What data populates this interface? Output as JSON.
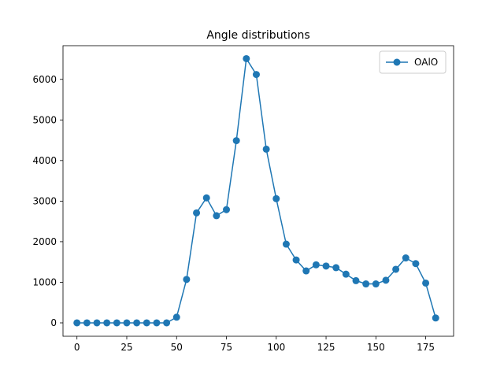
{
  "chart_data": {
    "type": "line",
    "title": "Angle distributions",
    "xlabel": "",
    "ylabel": "",
    "xlim": [
      -7,
      189
    ],
    "ylim": [
      -330,
      6830
    ],
    "xticks": [
      0,
      25,
      50,
      75,
      100,
      125,
      150,
      175
    ],
    "yticks": [
      0,
      1000,
      2000,
      3000,
      4000,
      5000,
      6000
    ],
    "grid": false,
    "legend_position": "top-right",
    "series": [
      {
        "name": "OAlO",
        "color": "#1f77b4",
        "marker": "circle",
        "x": [
          0,
          5,
          10,
          15,
          20,
          25,
          30,
          35,
          40,
          45,
          50,
          55,
          60,
          65,
          70,
          75,
          80,
          85,
          90,
          95,
          100,
          105,
          110,
          115,
          120,
          125,
          130,
          135,
          140,
          145,
          150,
          155,
          160,
          165,
          170,
          175,
          180
        ],
        "y": [
          0,
          0,
          0,
          0,
          0,
          0,
          0,
          0,
          0,
          0,
          140,
          1070,
          2710,
          3080,
          2640,
          2790,
          4490,
          6510,
          6120,
          4280,
          3060,
          1940,
          1550,
          1280,
          1430,
          1400,
          1360,
          1200,
          1040,
          960,
          960,
          1050,
          1320,
          1600,
          1460,
          980,
          120
        ]
      }
    ]
  }
}
